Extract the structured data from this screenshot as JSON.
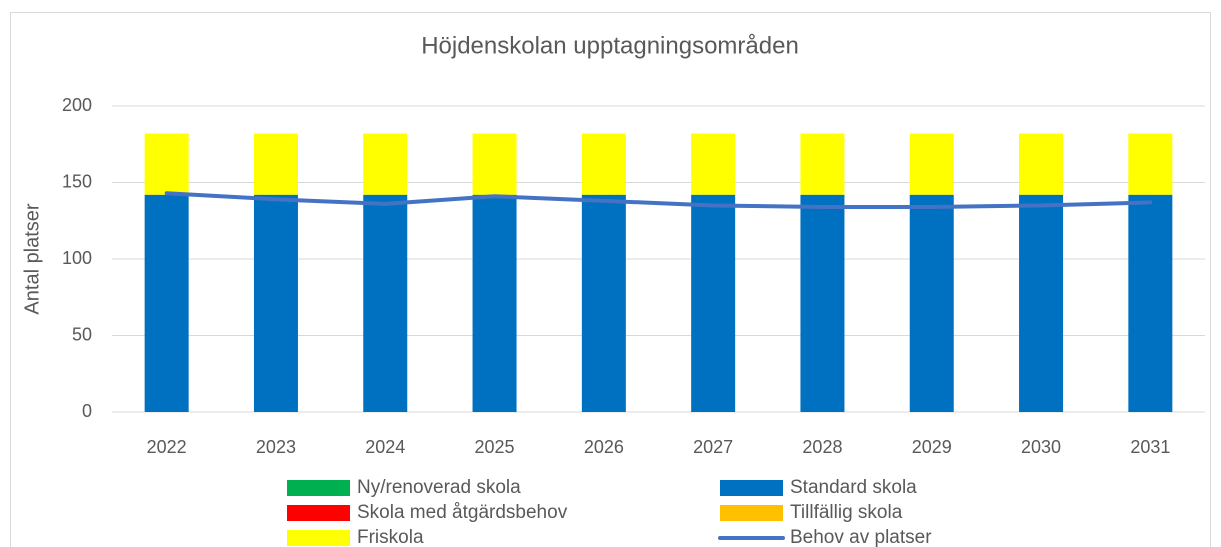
{
  "chart_data": {
    "type": "bar",
    "stacked": true,
    "title": "Höjdenskolan upptagningsområden",
    "y_label": "Antal platser",
    "categories": [
      "2022",
      "2023",
      "2024",
      "2025",
      "2026",
      "2027",
      "2028",
      "2029",
      "2030",
      "2031"
    ],
    "series": [
      {
        "name": "Ny/renoverad skola",
        "color": "#00b050",
        "values": [
          0,
          0,
          0,
          0,
          0,
          0,
          0,
          0,
          0,
          0
        ]
      },
      {
        "name": "Standard skola",
        "color": "#0070c0",
        "values": [
          142,
          142,
          142,
          142,
          142,
          142,
          142,
          142,
          142,
          142
        ]
      },
      {
        "name": "Skola med åtgärdsbehov",
        "color": "#ff0000",
        "values": [
          0,
          0,
          0,
          0,
          0,
          0,
          0,
          0,
          0,
          0
        ]
      },
      {
        "name": "Tillfällig skola",
        "color": "#ffc000",
        "values": [
          0,
          0,
          0,
          0,
          0,
          0,
          0,
          0,
          0,
          0
        ]
      },
      {
        "name": "Friskola",
        "color": "#ffff00",
        "values": [
          40,
          40,
          40,
          40,
          40,
          40,
          40,
          40,
          40,
          40
        ]
      },
      {
        "name": "Behov av platser",
        "type": "line",
        "color": "#4472c4",
        "values": [
          143,
          139,
          136,
          141,
          138,
          135,
          134,
          134,
          135,
          137
        ]
      }
    ],
    "ylim": [
      0,
      200
    ],
    "yticks": [
      0,
      50,
      100,
      150,
      200
    ],
    "grid": true
  }
}
